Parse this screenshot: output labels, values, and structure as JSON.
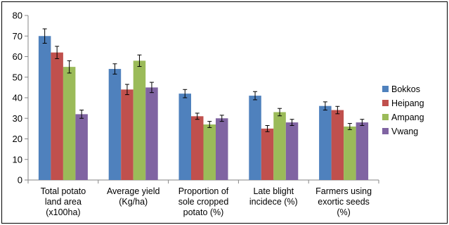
{
  "chart_data": {
    "type": "bar",
    "title": "",
    "xlabel": "",
    "ylabel": "",
    "ylim": [
      0,
      80
    ],
    "yticks": [
      0,
      10,
      20,
      30,
      40,
      50,
      60,
      70,
      80
    ],
    "grid": false,
    "legend_position": "right",
    "error_bars": true,
    "categories": [
      [
        "Total potato",
        "land area",
        "(x100ha)"
      ],
      [
        "Average yield",
        "(Kg/ha)"
      ],
      [
        "Proportion of",
        "sole cropped",
        "potato (%)"
      ],
      [
        "Late blight",
        "incidece (%)"
      ],
      [
        "Farmers using",
        "exortic seeds",
        "(%)"
      ]
    ],
    "series": [
      {
        "name": "Bokkos",
        "color": "#4F81BD",
        "values": [
          70,
          54,
          42,
          41,
          36
        ],
        "errors": [
          3.5,
          2.5,
          2,
          2,
          2
        ]
      },
      {
        "name": "Heipang",
        "color": "#C0504D",
        "values": [
          62,
          44,
          31,
          25,
          34
        ],
        "errors": [
          3,
          2.5,
          1.5,
          1.5,
          1.8
        ]
      },
      {
        "name": "Ampang",
        "color": "#9BBB59",
        "values": [
          55,
          58,
          27,
          33,
          26
        ],
        "errors": [
          3,
          2.8,
          1.5,
          1.8,
          1.5
        ]
      },
      {
        "name": "Vwang",
        "color": "#8064A2",
        "values": [
          32,
          45,
          30,
          28,
          28
        ],
        "errors": [
          2,
          2.5,
          1.5,
          1.5,
          1.5
        ]
      }
    ]
  }
}
